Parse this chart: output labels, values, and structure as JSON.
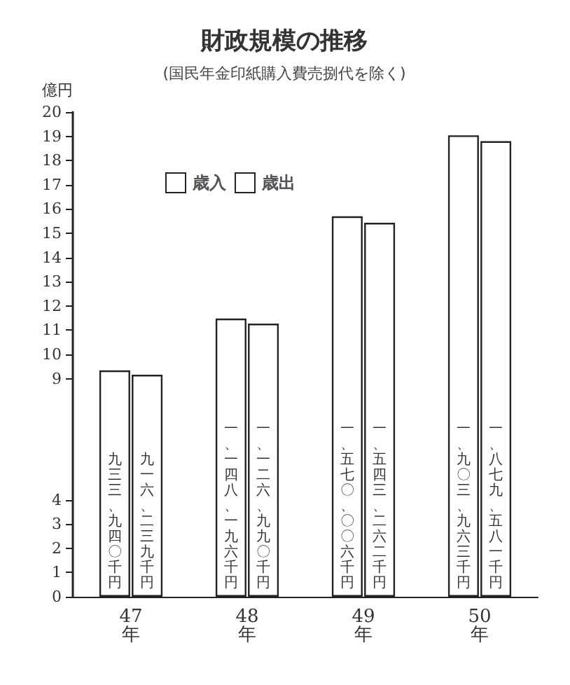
{
  "chart_data": {
    "type": "bar",
    "title": "財政規模の推移",
    "subtitle": "(国民年金印紙購入費売捌代を除く)",
    "ylabel": "億円",
    "categories": [
      "47年",
      "48年",
      "49年",
      "50年"
    ],
    "series": [
      {
        "name": "歳入",
        "color": "#ffffff",
        "values": [
          9.34,
          11.48,
          15.7,
          19.04
        ],
        "value_labels": [
          "九三三、九四〇千円",
          "一、一四八、一九六千円",
          "一、五七〇、〇〇六千円",
          "一、九〇三、九六三千円"
        ]
      },
      {
        "name": "歳出",
        "color": "#ffffff",
        "values": [
          9.16,
          11.27,
          15.43,
          18.8
        ],
        "value_labels": [
          "九一六、二三九千円",
          "一、一二六、九九〇千円",
          "一、五四三、二六二千円",
          "一、八七九、五八一千円"
        ]
      }
    ],
    "ylim": [
      0,
      20
    ],
    "yticks": [
      0,
      1,
      2,
      3,
      4,
      9,
      10,
      11,
      12,
      13,
      14,
      15,
      16,
      17,
      18,
      19,
      20
    ],
    "grid": false,
    "legend": "top left"
  }
}
